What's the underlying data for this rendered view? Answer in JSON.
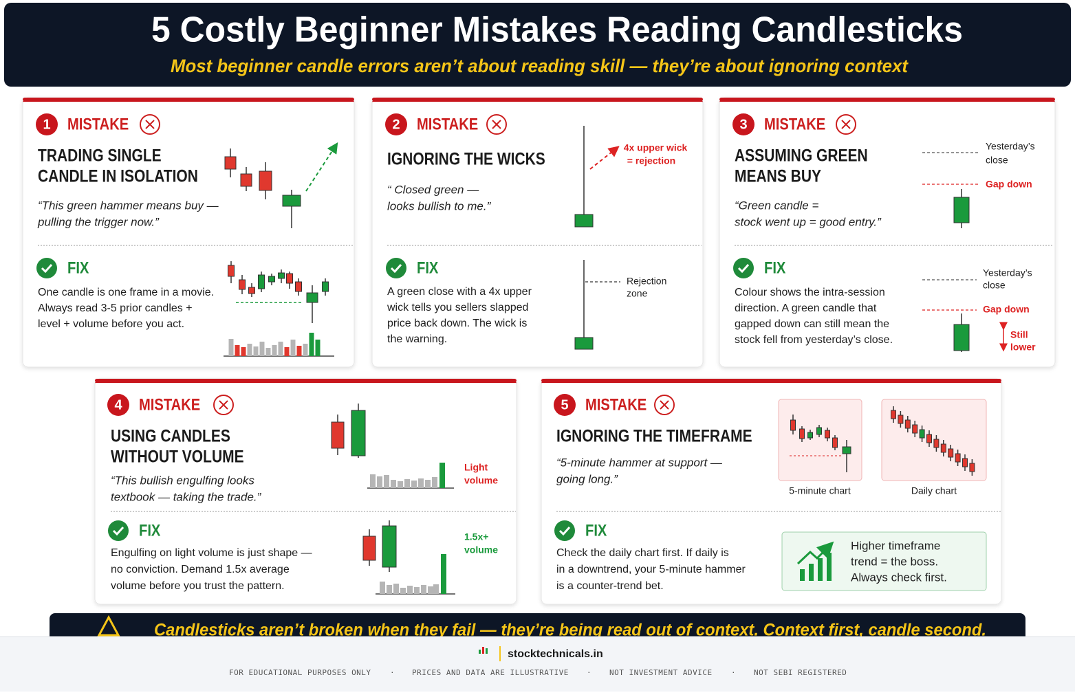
{
  "header": {
    "title": "5 Costly Beginner Mistakes Reading Candlesticks",
    "subtitle": "Most beginner candle errors aren’t about reading skill — they’re about ignoring context"
  },
  "cards": [
    {
      "number": "1",
      "mistake_label": "MISTAKE",
      "heading": [
        "TRADING SINGLE",
        "CANDLE IN ISOLATION"
      ],
      "quote": [
        "“This green hammer means buy —",
        "pulling the trigger now.”"
      ],
      "fix_label": "FIX",
      "fix_text": [
        "One candle is one frame in a movie.",
        "Always read 3-5 prior candles +",
        "level + volume before you act."
      ]
    },
    {
      "number": "2",
      "mistake_label": "MISTAKE",
      "heading": [
        "IGNORING THE WICKS"
      ],
      "quote": [
        "“ Closed green —",
        "looks bullish to me.”"
      ],
      "annotation": [
        "4x upper wick",
        "= rejection"
      ],
      "fix_label": "FIX",
      "fix_text": [
        "A green close with a 4x upper",
        "wick tells you sellers slapped",
        "price back down. The wick is",
        "the warning."
      ],
      "fix_annotation": [
        "Rejection",
        "zone"
      ]
    },
    {
      "number": "3",
      "mistake_label": "MISTAKE",
      "heading": [
        "ASSUMING GREEN",
        "MEANS BUY"
      ],
      "quote": [
        "“Green candle =",
        "stock went up = good entry.”"
      ],
      "annotation": {
        "close": [
          "Yesterday’s",
          "close"
        ],
        "gap": "Gap down"
      },
      "fix_label": "FIX",
      "fix_text": [
        "Colour shows the intra-session",
        "direction. A green candle that",
        "gapped down can still mean the",
        "stock fell from yesterday’s close."
      ],
      "fix_annotation": {
        "close": [
          "Yesterday’s",
          "close"
        ],
        "gap": "Gap down",
        "lower": [
          "Still",
          "lower"
        ]
      }
    },
    {
      "number": "4",
      "mistake_label": "MISTAKE",
      "heading": [
        "USING CANDLES",
        "WITHOUT VOLUME"
      ],
      "quote": [
        "“This bullish engulfing looks",
        "textbook — taking the trade.”"
      ],
      "annotation": [
        "Light",
        "volume"
      ],
      "fix_label": "FIX",
      "fix_text": [
        "Engulfing on light volume is just shape —",
        "no conviction. Demand 1.5x average",
        "volume before you trust the pattern."
      ],
      "fix_annotation": [
        "1.5x+",
        "volume"
      ]
    },
    {
      "number": "5",
      "mistake_label": "MISTAKE",
      "heading": [
        "IGNORING THE TIMEFRAME"
      ],
      "quote": [
        "“5-minute hammer at support —",
        "going long.”"
      ],
      "chart_labels": [
        "5-minute chart",
        "Daily chart"
      ],
      "fix_label": "FIX",
      "fix_text": [
        "Check the daily chart first. If daily is",
        "in a downtrend, your 5-minute hammer",
        "is a counter-trend bet."
      ],
      "callout": [
        "Higher timeframe",
        "trend = the boss.",
        "Always check first."
      ]
    }
  ],
  "banner": "Candlesticks aren’t broken when they fail — they’re being read out of context. Context first, candle second.",
  "footer": {
    "brand": "stocktechnicals.in",
    "disclaimers": [
      "FOR EDUCATIONAL PURPOSES ONLY",
      "PRICES AND DATA ARE ILLUSTRATIVE",
      "NOT INVESTMENT ADVICE",
      "NOT SEBI REGISTERED"
    ],
    "separator": "·"
  }
}
